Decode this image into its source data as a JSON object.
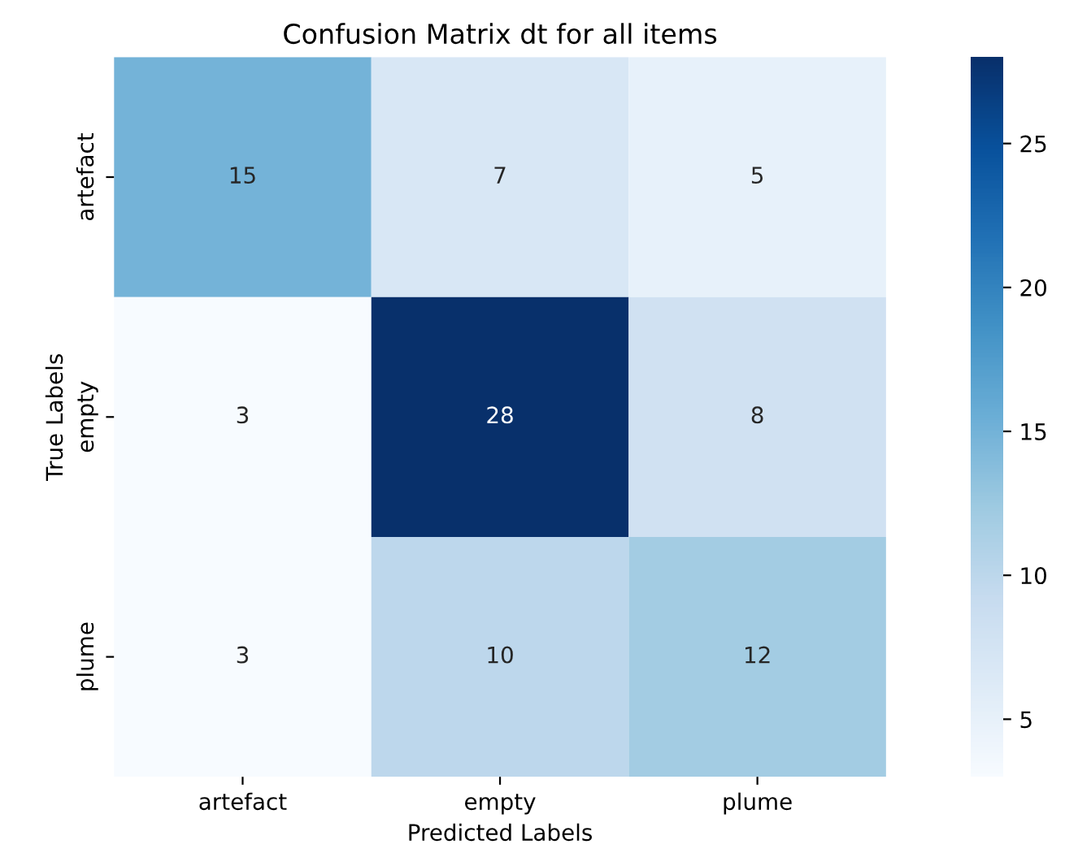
{
  "chart_data": {
    "type": "heatmap",
    "title": "Confusion Matrix dt for all items",
    "xlabel": "Predicted Labels",
    "ylabel": "True Labels",
    "categories": [
      "artefact",
      "empty",
      "plume"
    ],
    "y_categories": [
      "artefact",
      "empty",
      "plume"
    ],
    "cells": [
      [
        15,
        7,
        5
      ],
      [
        3,
        28,
        8
      ],
      [
        3,
        10,
        12
      ]
    ],
    "clim": [
      3,
      28
    ],
    "cticks": [
      5,
      10,
      15,
      20,
      25
    ],
    "data_labels": true
  }
}
